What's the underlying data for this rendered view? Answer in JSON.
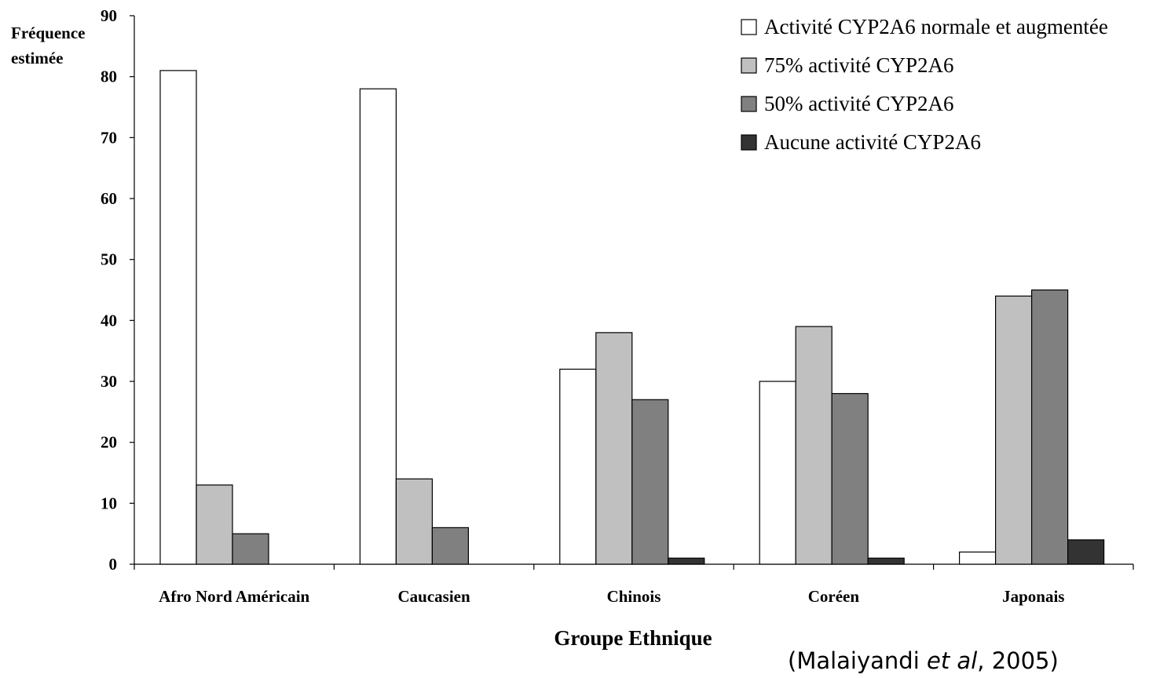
{
  "chart_data": {
    "type": "bar",
    "categories": [
      "Afro Nord Américain",
      "Caucasien",
      "Chinois",
      "Coréen",
      "Japonais"
    ],
    "series": [
      {
        "name": "Activité CYP2A6 normale et augmentée",
        "color": "#ffffff",
        "values": [
          81,
          78,
          32,
          30,
          2
        ]
      },
      {
        "name": "75% activité CYP2A6",
        "color": "#c0c0c0",
        "values": [
          13,
          14,
          38,
          39,
          44
        ]
      },
      {
        "name": "50% activité CYP2A6",
        "color": "#808080",
        "values": [
          5,
          6,
          27,
          28,
          45
        ]
      },
      {
        "name": "Aucune activité CYP2A6",
        "color": "#333333",
        "values": [
          0,
          0,
          1,
          1,
          4
        ]
      }
    ],
    "ylabel_lines": [
      "Fréquence",
      "estimée"
    ],
    "xlabel": "Groupe Ethnique",
    "ylim": [
      0,
      90
    ],
    "yticks": [
      0,
      10,
      20,
      30,
      40,
      50,
      60,
      70,
      80,
      90
    ],
    "grid": false,
    "legend_position": "top-right"
  },
  "source": {
    "prefix": "(Malaiyandi ",
    "italic": "et al",
    "suffix": ", 2005)"
  }
}
